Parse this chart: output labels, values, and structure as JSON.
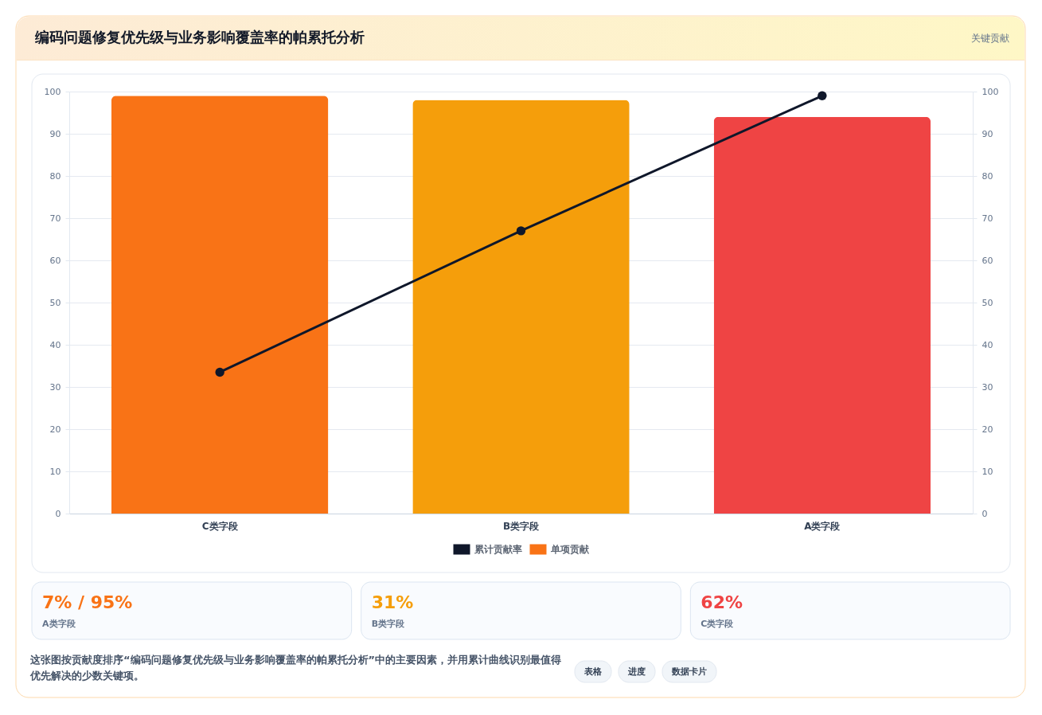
{
  "chart_data": {
    "type": "bar",
    "title": "编码问题修复优先级与业务影响覆盖率的帕累托分析",
    "categories": [
      "C类字段",
      "B类字段",
      "A类字段"
    ],
    "series": [
      {
        "name": "累计贡献率",
        "type": "line",
        "color": "#0f172a",
        "axis": "y2",
        "values": [
          33.5,
          67,
          99
        ]
      },
      {
        "name": "单项贡献",
        "colors": [
          "#f97316",
          "#f59e0b",
          "#ef4444"
        ],
        "values": [
          99,
          98,
          94
        ]
      }
    ],
    "ylim": [
      0,
      100
    ],
    "yticks": [
      0,
      10,
      20,
      30,
      40,
      50,
      60,
      70,
      80,
      90,
      100
    ],
    "y2lim": [
      0,
      100
    ],
    "y2ticks": [
      0,
      10,
      20,
      30,
      40,
      50,
      60,
      70,
      80,
      90,
      100
    ],
    "grid": "y",
    "legend": "bottom",
    "marker": "circle",
    "line_style": "solid",
    "annotations": [
      "关键贡献",
      "7% / 95%",
      "A类字段",
      "31%",
      "B类字段",
      "62%",
      "C类字段",
      "这张图按贡献度排序“编码问题修复优先级与业务影响覆盖率的帕累托分析”中的主要因素，并用累计曲线识别最值得优先解决的少数关键项。",
      "表格",
      "进度",
      "数据卡片"
    ]
  }
}
